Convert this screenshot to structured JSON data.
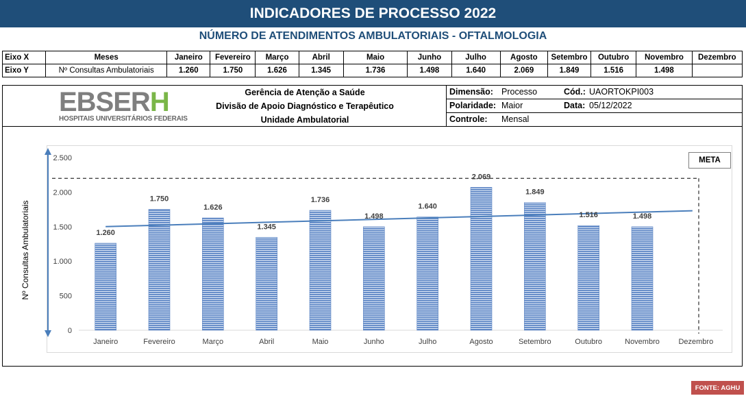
{
  "header": {
    "title": "INDICADORES DE PROCESSO 2022",
    "subtitle": "NÚMERO DE ATENDIMENTOS AMBULATORIAIS - OFTALMOLOGIA"
  },
  "table": {
    "row_x": {
      "label": "Eixo X",
      "series_label": "Meses",
      "cells": [
        "Janeiro",
        "Fevereiro",
        "Março",
        "Abril",
        "Maio",
        "Junho",
        "Julho",
        "Agosto",
        "Setembro",
        "Outubro",
        "Novembro",
        "Dezembro"
      ]
    },
    "row_y": {
      "label": "Eixo Y",
      "series_label": "Nº Consultas Ambulatoriais",
      "cells": [
        "1.260",
        "1.750",
        "1.626",
        "1.345",
        "1.736",
        "1.498",
        "1.640",
        "2.069",
        "1.849",
        "1.516",
        "1.498",
        ""
      ]
    }
  },
  "info": {
    "logo_main": "EBSERH",
    "logo_sub": "HOSPITAIS UNIVERSITÁRIOS FEDERAIS",
    "org_line1": "Gerência de Atenção a Saúde",
    "org_line2": "Divisão de Apoio Diagnóstico e Terapêutico",
    "org_line3": "Unidade Ambulatorial",
    "dimensao_label": "Dimensão:",
    "dimensao_value": "Processo",
    "cod_label": "Cód.:",
    "cod_value": "UAORTOKPI003",
    "polaridade_label": "Polaridade:",
    "polaridade_value": "Maior",
    "data_label": "Data:",
    "data_value": "05/12/2022",
    "controle_label": "Controle:",
    "controle_value": "Mensal"
  },
  "chart_data": {
    "type": "bar",
    "categories": [
      "Janeiro",
      "Fevereiro",
      "Março",
      "Abril",
      "Maio",
      "Junho",
      "Julho",
      "Agosto",
      "Setembro",
      "Outubro",
      "Novembro",
      "Dezembro"
    ],
    "series": [
      {
        "name": "Nº Consultas Ambulatoriais",
        "values": [
          1260,
          1750,
          1626,
          1345,
          1736,
          1498,
          1640,
          2069,
          1849,
          1516,
          1498,
          null
        ],
        "labels": [
          "1.260",
          "1.750",
          "1.626",
          "1.345",
          "1.736",
          "1.498",
          "1.640",
          "2.069",
          "1.849",
          "1.516",
          "1.498",
          ""
        ]
      }
    ],
    "trendline": {
      "type": "linear",
      "start": 1500,
      "end": 1730
    },
    "meta": {
      "label": "META",
      "value": 2200
    },
    "ylabel": "Nº Consultas Ambulatoriais",
    "xlabel": "",
    "ylim": [
      0,
      2500
    ],
    "yticks": [
      0,
      500,
      1000,
      1500,
      2000,
      2500
    ],
    "ytick_labels": [
      "0",
      "500",
      "1.000",
      "1.500",
      "2.000",
      "2.500"
    ],
    "grid": false,
    "colors": {
      "bar": "#5b84c4",
      "trend": "#4a7ebb",
      "meta": "#000000"
    }
  },
  "footer": {
    "source": "FONTE: AGHU"
  },
  "colors": {
    "header_bg": "#1f4e79",
    "subtitle": "#1f4e79",
    "logo_gray": "#7f7f7f",
    "logo_green": "#7ab648",
    "source_bg": "#c0504d"
  }
}
